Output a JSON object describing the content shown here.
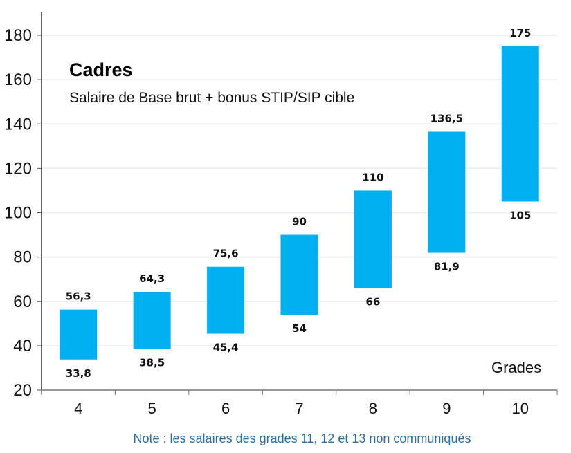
{
  "chart_data": {
    "type": "bar",
    "subtype": "floating-range",
    "title": "Cadres",
    "subtitle": "Salaire de Base brut + bonus STIP/SIP cible",
    "xlabel": "Grades",
    "ylabel": "",
    "categories": [
      "4",
      "5",
      "6",
      "7",
      "8",
      "9",
      "10"
    ],
    "low": [
      33.8,
      38.5,
      45.4,
      54,
      66,
      81.9,
      105
    ],
    "high": [
      56.3,
      64.3,
      75.6,
      90,
      110,
      136.5,
      175
    ],
    "low_labels": [
      "33,8",
      "38,5",
      "45,4",
      "54",
      "66",
      "81,9",
      "105"
    ],
    "high_labels": [
      "56,3",
      "64,3",
      "75,6",
      "90",
      "110",
      "136,5",
      "175"
    ],
    "ylim": [
      20,
      180
    ],
    "yticks": [
      20,
      40,
      60,
      80,
      100,
      120,
      140,
      160,
      180
    ],
    "grid": true,
    "bar_color": "#00b0f0",
    "note": "Note : les salaires des grades 11, 12 et 13 non communiqués"
  }
}
